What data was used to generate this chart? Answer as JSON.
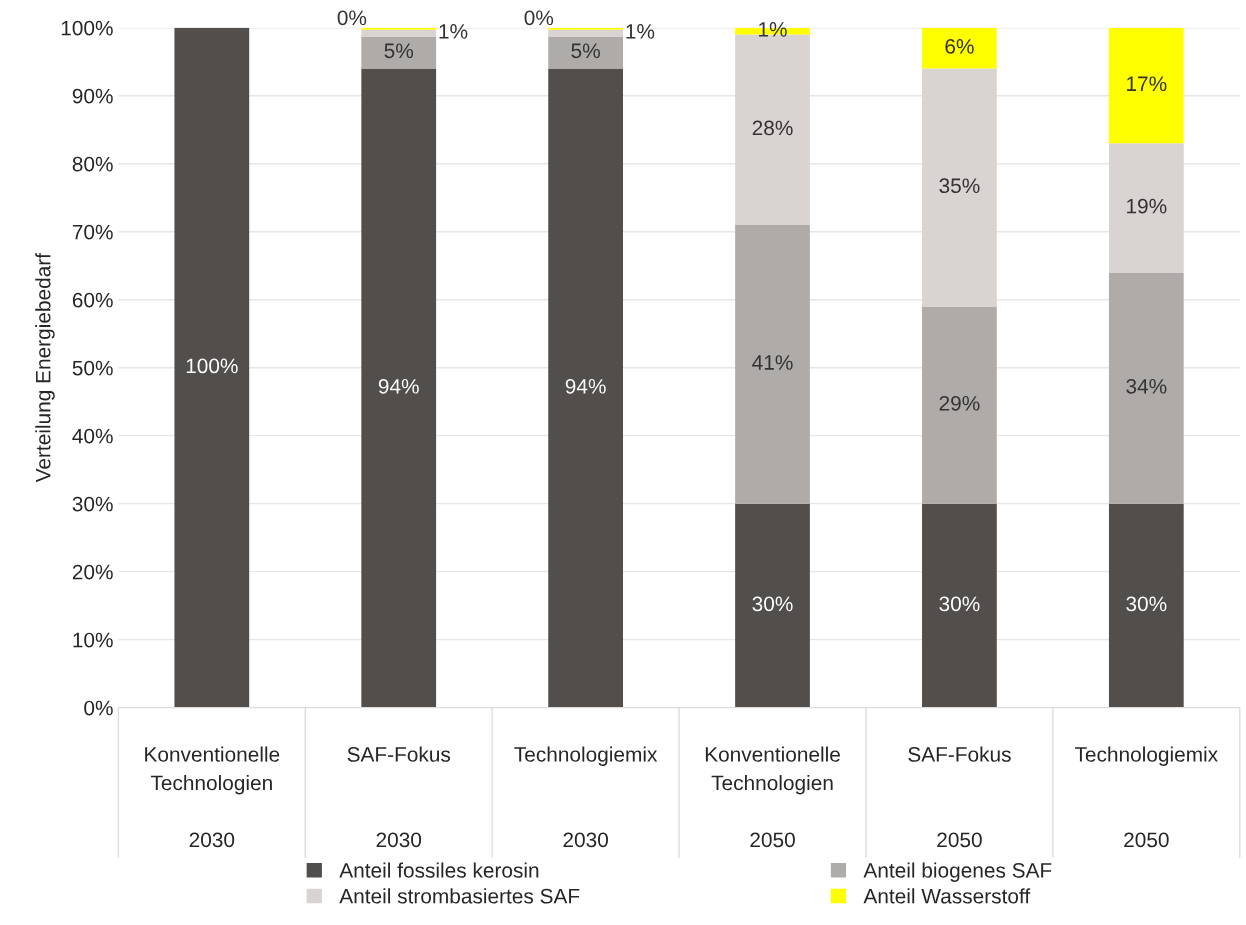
{
  "chart_data": {
    "type": "bar",
    "stacked": true,
    "ylabel": "Verteilung Energiebedarf",
    "categories": [
      "Konventionelle\nTechnologien\n\n2030",
      "SAF-Fokus\n\n\n2030",
      "Technologiemix\n\n\n2030",
      "Konventionelle\nTechnologien\n\n2050",
      "SAF-Fokus\n\n\n2050",
      "Technologiemix\n\n\n2050"
    ],
    "series": [
      {
        "name": "Anteil fossiles kerosin",
        "color": "#524e4c",
        "values": [
          100,
          94,
          94,
          30,
          30,
          30
        ],
        "value_labels": [
          "100%",
          "94%",
          "94%",
          "30%",
          "30%",
          "30%"
        ]
      },
      {
        "name": "Anteil biogenes SAF",
        "color": "#afaba9",
        "values": [
          0,
          4.7,
          4.7,
          41,
          29,
          34
        ],
        "value_labels": [
          null,
          "5%",
          "5%",
          "41%",
          "29%",
          "34%"
        ]
      },
      {
        "name": "Anteil strombasiertes SAF",
        "color": "#d9d3d2",
        "values": [
          0,
          1,
          1,
          28,
          35,
          19
        ],
        "value_labels": [
          null,
          "1%",
          "1%",
          "28%",
          "35%",
          "19%"
        ]
      },
      {
        "name": "Anteil Wasserstoff",
        "color": "#ffff00",
        "values": [
          0,
          0.3,
          0.3,
          1,
          6,
          17
        ],
        "value_labels": [
          null,
          "0%",
          "0%",
          "1%",
          "6%",
          "17%"
        ]
      }
    ],
    "ylim": [
      0,
      100
    ],
    "yticks": [
      {
        "value": 0,
        "label": "0%"
      },
      {
        "value": 10,
        "label": "10%"
      },
      {
        "value": 20,
        "label": "20%"
      },
      {
        "value": 30,
        "label": "30%"
      },
      {
        "value": 40,
        "label": "40%"
      },
      {
        "value": 50,
        "label": "50%"
      },
      {
        "value": 60,
        "label": "60%"
      },
      {
        "value": 70,
        "label": "70%"
      },
      {
        "value": 80,
        "label": "80%"
      },
      {
        "value": 90,
        "label": "90%"
      },
      {
        "value": 100,
        "label": "100%"
      }
    ],
    "grid": "y",
    "legend": "bottom"
  }
}
